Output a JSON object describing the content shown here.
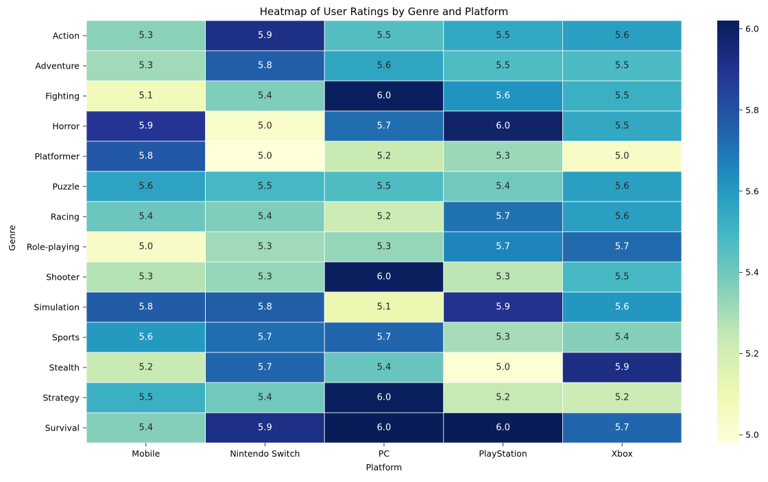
{
  "chart_data": {
    "type": "heatmap",
    "title": "Heatmap of User Ratings by Genre and Platform",
    "xlabel": "Platform",
    "ylabel": "Genre",
    "x_categories": [
      "Mobile",
      "Nintendo Switch",
      "PC",
      "PlayStation",
      "Xbox"
    ],
    "y_categories": [
      "Action",
      "Adventure",
      "Fighting",
      "Horror",
      "Platformer",
      "Puzzle",
      "Racing",
      "Role-playing",
      "Shooter",
      "Simulation",
      "Sports",
      "Stealth",
      "Strategy",
      "Survival"
    ],
    "values": [
      [
        5.35,
        5.92,
        5.46,
        5.55,
        5.58
      ],
      [
        5.31,
        5.76,
        5.56,
        5.47,
        5.48
      ],
      [
        5.08,
        5.37,
        6.01,
        5.62,
        5.52
      ],
      [
        5.89,
        5.03,
        5.72,
        5.98,
        5.55
      ],
      [
        5.78,
        4.98,
        5.23,
        5.32,
        5.04
      ],
      [
        5.57,
        5.49,
        5.47,
        5.4,
        5.58
      ],
      [
        5.41,
        5.37,
        5.22,
        5.71,
        5.58
      ],
      [
        5.04,
        5.31,
        5.33,
        5.66,
        5.73
      ],
      [
        5.27,
        5.33,
        6.01,
        5.26,
        5.49
      ],
      [
        5.77,
        5.76,
        5.12,
        5.9,
        5.61
      ],
      [
        5.6,
        5.72,
        5.74,
        5.3,
        5.36
      ],
      [
        5.23,
        5.74,
        5.42,
        5.0,
        5.93
      ],
      [
        5.52,
        5.4,
        6.01,
        5.24,
        5.22
      ],
      [
        5.36,
        5.92,
        6.02,
        6.02,
        5.74
      ]
    ],
    "value_format": "0.1f",
    "colormap": "YlGnBu",
    "vmin": 4.98,
    "vmax": 6.02,
    "colorbar_ticks": [
      "5.0",
      "5.2",
      "5.4",
      "5.6",
      "5.8",
      "6.0"
    ],
    "colorbar_tick_values": [
      5.0,
      5.2,
      5.4,
      5.6,
      5.8,
      6.0
    ]
  }
}
